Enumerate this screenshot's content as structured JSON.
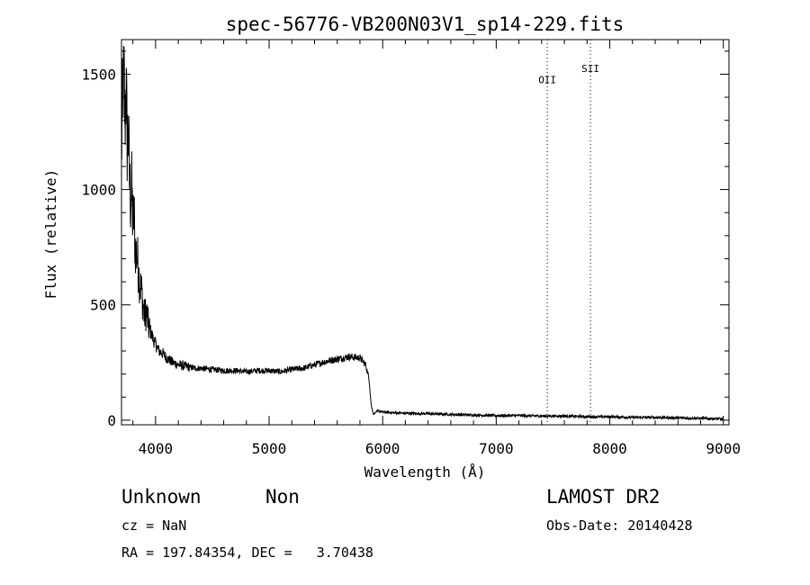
{
  "chart_data": {
    "type": "line",
    "title": "spec-56776-VB200N03V1_sp14-229.fits",
    "xlabel": "Wavelength (Å)",
    "ylabel": "Flux (relative)",
    "xlim": [
      3700,
      9050
    ],
    "ylim": [
      -20,
      1650
    ],
    "xticks": [
      4000,
      5000,
      6000,
      7000,
      8000,
      9000
    ],
    "xtick_labels": [
      "4000",
      "5000",
      "6000",
      "7000",
      "8000",
      "9000"
    ],
    "yticks": [
      0,
      500,
      1000,
      1500
    ],
    "ytick_labels": [
      "0",
      "500",
      "1000",
      "1500"
    ],
    "grid": false,
    "series": [
      {
        "name": "",
        "color": "#000000",
        "x": [
          3700,
          3710,
          3720,
          3730,
          3740,
          3750,
          3760,
          3770,
          3780,
          3790,
          3800,
          3810,
          3820,
          3840,
          3860,
          3880,
          3900,
          3920,
          3940,
          3960,
          3980,
          4000,
          4030,
          4060,
          4100,
          4150,
          4200,
          4250,
          4300,
          4350,
          4400,
          4500,
          4600,
          4700,
          4800,
          4900,
          5000,
          5100,
          5200,
          5300,
          5400,
          5500,
          5600,
          5700,
          5800,
          5850,
          5880,
          5900,
          5920,
          5940,
          5960,
          6000,
          6100,
          6200,
          6400,
          6600,
          6800,
          7000,
          7200,
          7400,
          7600,
          7800,
          8000,
          8200,
          8400,
          8600,
          8800,
          9000
        ],
        "y": [
          1150,
          1400,
          1560,
          1300,
          1450,
          1200,
          1250,
          1050,
          950,
          1000,
          850,
          900,
          750,
          700,
          600,
          550,
          450,
          470,
          400,
          380,
          350,
          330,
          300,
          290,
          270,
          250,
          240,
          235,
          230,
          225,
          225,
          220,
          215,
          215,
          210,
          215,
          215,
          210,
          220,
          225,
          240,
          255,
          265,
          275,
          270,
          240,
          180,
          60,
          25,
          35,
          40,
          35,
          32,
          30,
          28,
          25,
          22,
          20,
          20,
          18,
          18,
          15,
          15,
          12,
          12,
          10,
          8,
          5
        ]
      }
    ],
    "lines": [
      {
        "label": "OII",
        "x": 7450,
        "label_y": 1460
      },
      {
        "label": "SII",
        "x": 7830,
        "label_y": 1510
      }
    ]
  },
  "info": {
    "class": "Unknown",
    "subclass": "Non",
    "survey": "LAMOST DR2",
    "cz": "cz = NaN",
    "obs_date": "Obs-Date: 20140428",
    "coords": "RA = 197.84354, DEC =   3.70438"
  }
}
